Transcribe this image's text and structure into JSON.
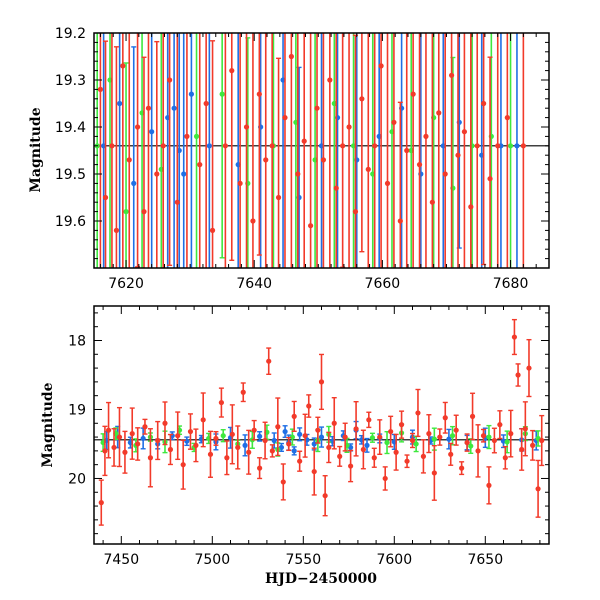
{
  "colors": {
    "blue": "#1f6fe5",
    "green": "#3ee83e",
    "red": "#f23a2a",
    "axis": "#000000",
    "background": "#ffffff"
  },
  "chart_data": [
    {
      "type": "scatter",
      "panel": "top",
      "title": "",
      "xlabel": "",
      "ylabel": "Magnitude",
      "xlim": [
        7615,
        7686
      ],
      "ylim": [
        19.7,
        19.2
      ],
      "y_inverted": true,
      "x_ticks": [
        7620,
        7640,
        7660,
        7680
      ],
      "y_ticks": [
        19.2,
        19.3,
        19.4,
        19.5,
        19.6
      ],
      "reference_line": 19.44,
      "note_error_bars": "most points carry very large vertical error bars spanning the full plotted range",
      "series": [
        {
          "color": "blue",
          "points": [
            [
              7616.5,
              19.44
            ],
            [
              7619.0,
              19.35
            ],
            [
              7621.2,
              19.52
            ],
            [
              7624.0,
              19.41
            ],
            [
              7626.5,
              19.38
            ],
            [
              7627.5,
              19.36
            ],
            [
              7628.3,
              19.45
            ],
            [
              7629.0,
              19.5
            ],
            [
              7630.2,
              19.33
            ],
            [
              7633.0,
              19.44
            ],
            [
              7637.5,
              19.48
            ],
            [
              7641.0,
              19.4
            ],
            [
              7644.5,
              19.3
            ],
            [
              7647.0,
              19.55
            ],
            [
              7650.5,
              19.44
            ],
            [
              7653.0,
              19.38
            ],
            [
              7656.0,
              19.47
            ],
            [
              7659.5,
              19.42
            ],
            [
              7663.0,
              19.36
            ],
            [
              7666.0,
              19.5
            ],
            [
              7669.5,
              19.44
            ],
            [
              7672.0,
              19.39
            ],
            [
              7675.5,
              19.46
            ],
            [
              7678.5,
              19.44
            ],
            [
              7681.0,
              19.44
            ]
          ]
        },
        {
          "color": "green",
          "points": [
            [
              7615.5,
              19.44
            ],
            [
              7617.5,
              19.3
            ],
            [
              7620.0,
              19.58
            ],
            [
              7622.5,
              19.37
            ],
            [
              7625.5,
              19.49
            ],
            [
              7631.0,
              19.42
            ],
            [
              7635.0,
              19.33
            ],
            [
              7639.0,
              19.52
            ],
            [
              7643.0,
              19.44
            ],
            [
              7646.5,
              19.39
            ],
            [
              7649.5,
              19.47
            ],
            [
              7652.5,
              19.35
            ],
            [
              7655.5,
              19.44
            ],
            [
              7658.5,
              19.5
            ],
            [
              7661.5,
              19.41
            ],
            [
              7664.5,
              19.45
            ],
            [
              7668.0,
              19.38
            ],
            [
              7671.0,
              19.53
            ],
            [
              7674.0,
              19.44
            ],
            [
              7677.0,
              19.42
            ],
            [
              7680.0,
              19.44
            ]
          ]
        },
        {
          "color": "red",
          "points": [
            [
              7616.0,
              19.32
            ],
            [
              7616.8,
              19.55
            ],
            [
              7617.8,
              19.44
            ],
            [
              7618.5,
              19.62
            ],
            [
              7619.5,
              19.27
            ],
            [
              7620.5,
              19.47
            ],
            [
              7621.8,
              19.4
            ],
            [
              7622.8,
              19.58
            ],
            [
              7623.5,
              19.36
            ],
            [
              7624.8,
              19.5
            ],
            [
              7625.8,
              19.44
            ],
            [
              7626.8,
              19.3
            ],
            [
              7628.0,
              19.56
            ],
            [
              7629.5,
              19.42
            ],
            [
              7631.5,
              19.48
            ],
            [
              7632.5,
              19.35
            ],
            [
              7633.5,
              19.62
            ],
            [
              7635.5,
              19.44
            ],
            [
              7636.5,
              19.28
            ],
            [
              7637.8,
              19.52
            ],
            [
              7638.8,
              19.4
            ],
            [
              7639.8,
              19.6
            ],
            [
              7640.8,
              19.33
            ],
            [
              7641.8,
              19.47
            ],
            [
              7642.8,
              19.44
            ],
            [
              7643.8,
              19.55
            ],
            [
              7644.8,
              19.38
            ],
            [
              7645.8,
              19.25
            ],
            [
              7646.8,
              19.5
            ],
            [
              7647.8,
              19.43
            ],
            [
              7648.8,
              19.61
            ],
            [
              7649.8,
              19.36
            ],
            [
              7650.8,
              19.47
            ],
            [
              7651.8,
              19.3
            ],
            [
              7652.8,
              19.53
            ],
            [
              7653.8,
              19.44
            ],
            [
              7654.8,
              19.4
            ],
            [
              7655.8,
              19.58
            ],
            [
              7656.8,
              19.34
            ],
            [
              7657.8,
              19.49
            ],
            [
              7658.8,
              19.44
            ],
            [
              7659.8,
              19.27
            ],
            [
              7660.8,
              19.52
            ],
            [
              7661.8,
              19.39
            ],
            [
              7662.8,
              19.6
            ],
            [
              7663.8,
              19.45
            ],
            [
              7664.8,
              19.33
            ],
            [
              7665.8,
              19.48
            ],
            [
              7666.8,
              19.42
            ],
            [
              7667.8,
              19.56
            ],
            [
              7668.8,
              19.37
            ],
            [
              7669.8,
              19.5
            ],
            [
              7670.8,
              19.29
            ],
            [
              7671.8,
              19.46
            ],
            [
              7672.8,
              19.41
            ],
            [
              7673.8,
              19.57
            ],
            [
              7674.8,
              19.44
            ],
            [
              7675.8,
              19.35
            ],
            [
              7676.8,
              19.51
            ],
            [
              7678.0,
              19.44
            ],
            [
              7679.5,
              19.38
            ],
            [
              7682.0,
              19.44
            ]
          ]
        }
      ]
    },
    {
      "type": "scatter",
      "panel": "bottom",
      "title": "",
      "xlabel": "HJD−2450000",
      "ylabel": "Magnitude",
      "xlim": [
        7435,
        7685
      ],
      "ylim": [
        20.95,
        17.5
      ],
      "y_inverted": true,
      "x_ticks": [
        7450,
        7500,
        7550,
        7600,
        7650
      ],
      "y_ticks": [
        18,
        19,
        20
      ],
      "reference_line": 19.44,
      "series": [
        {
          "color": "blue",
          "points": [
            [
              7442,
              19.45
            ],
            [
              7448,
              19.4
            ],
            [
              7455,
              19.48
            ],
            [
              7462,
              19.42
            ],
            [
              7470,
              19.5
            ],
            [
              7478,
              19.38
            ],
            [
              7486,
              19.46
            ],
            [
              7494,
              19.43
            ],
            [
              7502,
              19.47
            ],
            [
              7510,
              19.41
            ],
            [
              7518,
              19.52
            ],
            [
              7526,
              19.39
            ],
            [
              7534,
              19.45
            ],
            [
              7538,
              19.55
            ],
            [
              7540,
              19.32
            ],
            [
              7542,
              19.48
            ],
            [
              7545,
              19.6
            ],
            [
              7548,
              19.36
            ],
            [
              7552,
              19.44
            ],
            [
              7556,
              19.5
            ],
            [
              7560,
              19.4
            ],
            [
              7566,
              19.46
            ],
            [
              7572,
              19.38
            ],
            [
              7576,
              19.55
            ],
            [
              7579,
              19.3
            ],
            [
              7582,
              19.44
            ],
            [
              7585,
              19.52
            ],
            [
              7592,
              19.42
            ],
            [
              7600,
              19.47
            ],
            [
              7610,
              19.4
            ],
            [
              7620,
              19.45
            ],
            [
              7630,
              19.43
            ],
            [
              7640,
              19.48
            ],
            [
              7650,
              19.41
            ],
            [
              7660,
              19.46
            ],
            [
              7670,
              19.44
            ],
            [
              7678,
              19.45
            ]
          ]
        },
        {
          "color": "green",
          "points": [
            [
              7440,
              19.48
            ],
            [
              7447,
              19.35
            ],
            [
              7458,
              19.52
            ],
            [
              7466,
              19.4
            ],
            [
              7474,
              19.47
            ],
            [
              7482,
              19.3
            ],
            [
              7490,
              19.55
            ],
            [
              7498,
              19.42
            ],
            [
              7506,
              19.38
            ],
            [
              7514,
              19.5
            ],
            [
              7522,
              19.44
            ],
            [
              7530,
              19.33
            ],
            [
              7536,
              19.58
            ],
            [
              7544,
              19.4
            ],
            [
              7558,
              19.45
            ],
            [
              7564,
              19.36
            ],
            [
              7574,
              19.52
            ],
            [
              7588,
              19.41
            ],
            [
              7596,
              19.48
            ],
            [
              7604,
              19.34
            ],
            [
              7612,
              19.5
            ],
            [
              7622,
              19.43
            ],
            [
              7632,
              19.38
            ],
            [
              7642,
              19.53
            ],
            [
              7652,
              19.4
            ],
            [
              7662,
              19.47
            ],
            [
              7672,
              19.35
            ],
            [
              7679,
              19.42
            ]
          ]
        },
        {
          "color": "red",
          "points": [
            [
              7439,
              20.35
            ],
            [
              7441,
              19.6
            ],
            [
              7443,
              19.3
            ],
            [
              7446,
              19.55
            ],
            [
              7449,
              19.4
            ],
            [
              7452,
              19.62
            ],
            [
              7456,
              19.35
            ],
            [
              7459,
              19.5
            ],
            [
              7463,
              19.25
            ],
            [
              7466,
              19.7
            ],
            [
              7470,
              19.45
            ],
            [
              7474,
              19.2
            ],
            [
              7477,
              19.58
            ],
            [
              7481,
              19.38
            ],
            [
              7484,
              19.8
            ],
            [
              7488,
              19.32
            ],
            [
              7491,
              19.52
            ],
            [
              7495,
              19.15
            ],
            [
              7499,
              19.65
            ],
            [
              7502,
              19.42
            ],
            [
              7505,
              18.9
            ],
            [
              7508,
              19.7
            ],
            [
              7511,
              19.36
            ],
            [
              7514,
              19.55
            ],
            [
              7517,
              18.75
            ],
            [
              7520,
              19.62
            ],
            [
              7523,
              19.3
            ],
            [
              7526,
              19.85
            ],
            [
              7529,
              19.45
            ],
            [
              7531,
              18.3
            ],
            [
              7533,
              19.6
            ],
            [
              7536,
              19.25
            ],
            [
              7539,
              20.05
            ],
            [
              7542,
              19.5
            ],
            [
              7545,
              19.1
            ],
            [
              7548,
              19.75
            ],
            [
              7551,
              19.38
            ],
            [
              7553,
              18.95
            ],
            [
              7556,
              19.9
            ],
            [
              7558,
              19.3
            ],
            [
              7560,
              18.6
            ],
            [
              7562,
              20.25
            ],
            [
              7564,
              19.55
            ],
            [
              7567,
              19.2
            ],
            [
              7570,
              19.68
            ],
            [
              7573,
              19.4
            ],
            [
              7576,
              19.82
            ],
            [
              7579,
              19.28
            ],
            [
              7583,
              19.58
            ],
            [
              7586,
              19.15
            ],
            [
              7589,
              19.7
            ],
            [
              7592,
              19.4
            ],
            [
              7595,
              20.0
            ],
            [
              7598,
              19.32
            ],
            [
              7601,
              19.62
            ],
            [
              7604,
              19.22
            ],
            [
              7607,
              19.75
            ],
            [
              7610,
              19.45
            ],
            [
              7613,
              19.05
            ],
            [
              7616,
              19.68
            ],
            [
              7619,
              19.35
            ],
            [
              7622,
              19.92
            ],
            [
              7625,
              19.4
            ],
            [
              7628,
              19.12
            ],
            [
              7631,
              19.65
            ],
            [
              7634,
              19.3
            ],
            [
              7637,
              19.85
            ],
            [
              7640,
              19.48
            ],
            [
              7643,
              19.1
            ],
            [
              7646,
              19.6
            ],
            [
              7649,
              19.38
            ],
            [
              7652,
              20.1
            ],
            [
              7655,
              19.45
            ],
            [
              7658,
              19.22
            ],
            [
              7661,
              19.7
            ],
            [
              7664,
              19.35
            ],
            [
              7666,
              17.95
            ],
            [
              7668,
              18.5
            ],
            [
              7670,
              19.58
            ],
            [
              7672,
              19.28
            ],
            [
              7674,
              18.4
            ],
            [
              7676,
              19.52
            ],
            [
              7679,
              20.15
            ],
            [
              7681,
              19.45
            ]
          ]
        }
      ]
    }
  ]
}
